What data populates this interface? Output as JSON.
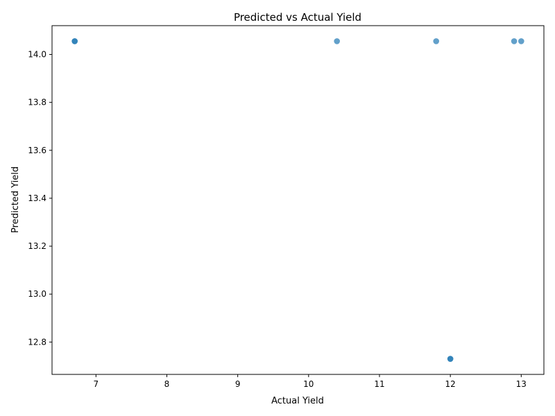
{
  "chart_data": {
    "type": "scatter",
    "title": "Predicted vs Actual Yield",
    "xlabel": "Actual Yield",
    "ylabel": "Predicted Yield",
    "xlim": [
      6.38,
      13.32
    ],
    "ylim": [
      12.665,
      14.12
    ],
    "xticks": [
      7,
      8,
      9,
      10,
      11,
      12,
      13
    ],
    "yticks": [
      12.8,
      13.0,
      13.2,
      13.4,
      13.6,
      13.8,
      14.0
    ],
    "xtick_labels": [
      "7",
      "8",
      "9",
      "10",
      "11",
      "12",
      "13"
    ],
    "ytick_labels": [
      "12.8",
      "13.0",
      "13.2",
      "13.4",
      "13.6",
      "13.8",
      "14.0"
    ],
    "grid": false,
    "legend": "none",
    "marker_color": "#1f77b4",
    "marker_alpha": 0.7,
    "points": [
      {
        "x": 6.7,
        "y": 14.055
      },
      {
        "x": 6.7,
        "y": 14.055
      },
      {
        "x": 10.4,
        "y": 14.055
      },
      {
        "x": 11.8,
        "y": 14.055
      },
      {
        "x": 12.9,
        "y": 14.055
      },
      {
        "x": 13.0,
        "y": 14.055
      },
      {
        "x": 12.0,
        "y": 12.73
      },
      {
        "x": 12.0,
        "y": 12.73
      }
    ]
  }
}
